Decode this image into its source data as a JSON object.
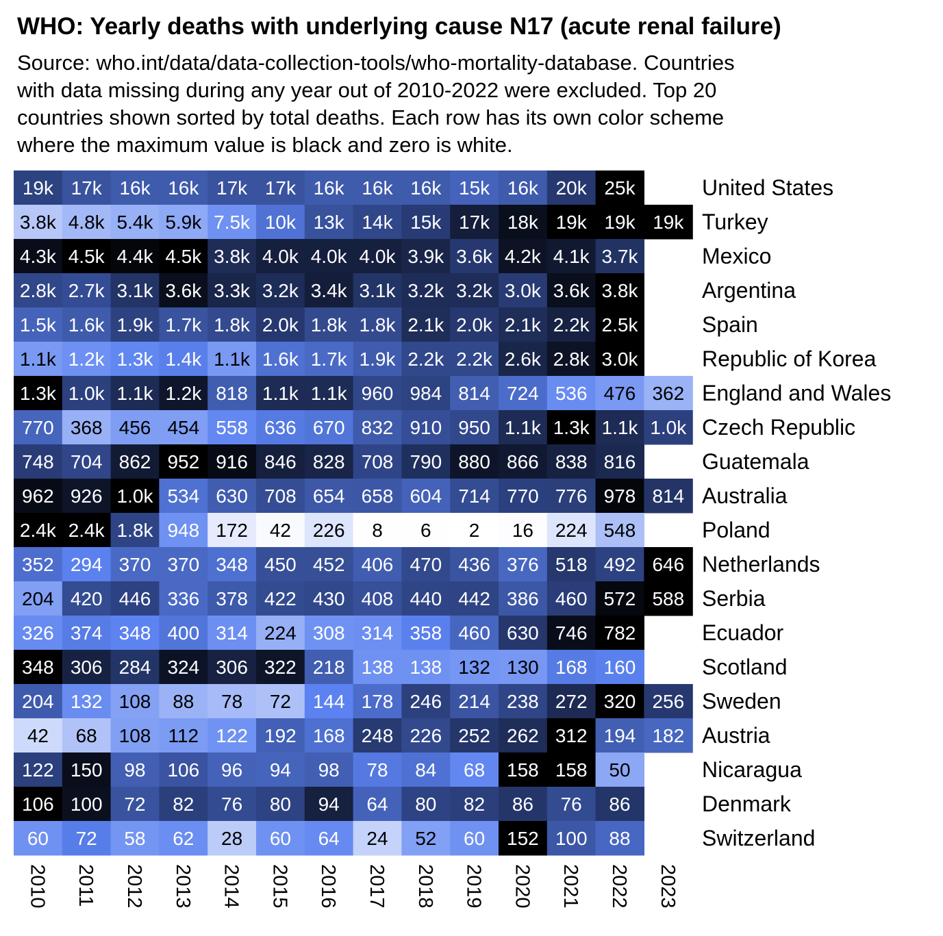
{
  "title": "WHO: Yearly deaths with underlying cause N17 (acute renal failure)",
  "subtitle": "Source: who.int/data/data-collection-tools/who-mortality-database. Countries\nwith data missing during any year out of 2010-2022 were excluded. Top 20\ncountries shown sorted by total deaths. Each row has its own color scheme\nwhere the maximum value is black and zero is white.",
  "chart_data": {
    "type": "heatmap",
    "color_scale": {
      "zero": "#ffffff",
      "mid": "#5b82f0",
      "high": "#2a3e7a",
      "max": "#000000"
    },
    "years": [
      "2010",
      "2011",
      "2012",
      "2013",
      "2014",
      "2015",
      "2016",
      "2017",
      "2018",
      "2019",
      "2020",
      "2021",
      "2022",
      "2023"
    ],
    "rows": [
      {
        "country": "United States",
        "values": [
          19000,
          17000,
          16000,
          16000,
          17000,
          17000,
          16000,
          16000,
          16000,
          15000,
          16000,
          20000,
          25000,
          null
        ],
        "labels": [
          "19k",
          "17k",
          "16k",
          "16k",
          "17k",
          "17k",
          "16k",
          "16k",
          "16k",
          "15k",
          "16k",
          "20k",
          "25k",
          ""
        ]
      },
      {
        "country": "Turkey",
        "values": [
          3800,
          4800,
          5400,
          5900,
          7500,
          10000,
          13000,
          14000,
          15000,
          17000,
          18000,
          19000,
          19000,
          19000
        ],
        "labels": [
          "3.8k",
          "4.8k",
          "5.4k",
          "5.9k",
          "7.5k",
          "10k",
          "13k",
          "14k",
          "15k",
          "17k",
          "18k",
          "19k",
          "19k",
          "19k"
        ]
      },
      {
        "country": "Mexico",
        "values": [
          4300,
          4500,
          4400,
          4500,
          3800,
          4000,
          4000,
          4000,
          3900,
          3600,
          4200,
          4100,
          3700,
          null
        ],
        "labels": [
          "4.3k",
          "4.5k",
          "4.4k",
          "4.5k",
          "3.8k",
          "4.0k",
          "4.0k",
          "4.0k",
          "3.9k",
          "3.6k",
          "4.2k",
          "4.1k",
          "3.7k",
          ""
        ]
      },
      {
        "country": "Argentina",
        "values": [
          2800,
          2700,
          3100,
          3600,
          3300,
          3200,
          3400,
          3100,
          3200,
          3200,
          3000,
          3600,
          3800,
          null
        ],
        "labels": [
          "2.8k",
          "2.7k",
          "3.1k",
          "3.6k",
          "3.3k",
          "3.2k",
          "3.4k",
          "3.1k",
          "3.2k",
          "3.2k",
          "3.0k",
          "3.6k",
          "3.8k",
          ""
        ]
      },
      {
        "country": "Spain",
        "values": [
          1500,
          1600,
          1900,
          1700,
          1800,
          2000,
          1800,
          1800,
          2100,
          2000,
          2100,
          2200,
          2500,
          null
        ],
        "labels": [
          "1.5k",
          "1.6k",
          "1.9k",
          "1.7k",
          "1.8k",
          "2.0k",
          "1.8k",
          "1.8k",
          "2.1k",
          "2.0k",
          "2.1k",
          "2.2k",
          "2.5k",
          ""
        ]
      },
      {
        "country": "Republic of Korea",
        "values": [
          1100,
          1200,
          1300,
          1400,
          1100,
          1600,
          1700,
          1900,
          2200,
          2200,
          2600,
          2800,
          3000,
          null
        ],
        "labels": [
          "1.1k",
          "1.2k",
          "1.3k",
          "1.4k",
          "1.1k",
          "1.6k",
          "1.7k",
          "1.9k",
          "2.2k",
          "2.2k",
          "2.6k",
          "2.8k",
          "3.0k",
          ""
        ]
      },
      {
        "country": "England and Wales",
        "values": [
          1300,
          1000,
          1100,
          1200,
          818,
          1100,
          1100,
          960,
          984,
          814,
          724,
          536,
          476,
          362
        ],
        "labels": [
          "1.3k",
          "1.0k",
          "1.1k",
          "1.2k",
          "818",
          "1.1k",
          "1.1k",
          "960",
          "984",
          "814",
          "724",
          "536",
          "476",
          "362"
        ]
      },
      {
        "country": "Czech Republic",
        "values": [
          770,
          368,
          456,
          454,
          558,
          636,
          670,
          832,
          910,
          950,
          1100,
          1300,
          1100,
          1000
        ],
        "labels": [
          "770",
          "368",
          "456",
          "454",
          "558",
          "636",
          "670",
          "832",
          "910",
          "950",
          "1.1k",
          "1.3k",
          "1.1k",
          "1.0k"
        ]
      },
      {
        "country": "Guatemala",
        "values": [
          748,
          704,
          862,
          952,
          916,
          846,
          828,
          708,
          790,
          880,
          866,
          838,
          816,
          null
        ],
        "labels": [
          "748",
          "704",
          "862",
          "952",
          "916",
          "846",
          "828",
          "708",
          "790",
          "880",
          "866",
          "838",
          "816",
          ""
        ]
      },
      {
        "country": "Australia",
        "values": [
          962,
          926,
          1000,
          534,
          630,
          708,
          654,
          658,
          604,
          714,
          770,
          776,
          978,
          814
        ],
        "labels": [
          "962",
          "926",
          "1.0k",
          "534",
          "630",
          "708",
          "654",
          "658",
          "604",
          "714",
          "770",
          "776",
          "978",
          "814"
        ]
      },
      {
        "country": "Poland",
        "values": [
          2400,
          2400,
          1800,
          948,
          172,
          42,
          226,
          8,
          6,
          2,
          16,
          224,
          548,
          null
        ],
        "labels": [
          "2.4k",
          "2.4k",
          "1.8k",
          "948",
          "172",
          "42",
          "226",
          "8",
          "6",
          "2",
          "16",
          "224",
          "548",
          ""
        ]
      },
      {
        "country": "Netherlands",
        "values": [
          352,
          294,
          370,
          370,
          348,
          450,
          452,
          406,
          470,
          436,
          376,
          518,
          492,
          646
        ],
        "labels": [
          "352",
          "294",
          "370",
          "370",
          "348",
          "450",
          "452",
          "406",
          "470",
          "436",
          "376",
          "518",
          "492",
          "646"
        ]
      },
      {
        "country": "Serbia",
        "values": [
          204,
          420,
          446,
          336,
          378,
          422,
          430,
          408,
          440,
          442,
          386,
          460,
          572,
          588
        ],
        "labels": [
          "204",
          "420",
          "446",
          "336",
          "378",
          "422",
          "430",
          "408",
          "440",
          "442",
          "386",
          "460",
          "572",
          "588"
        ]
      },
      {
        "country": "Ecuador",
        "values": [
          326,
          374,
          348,
          400,
          314,
          224,
          308,
          314,
          358,
          460,
          630,
          746,
          782,
          null
        ],
        "labels": [
          "326",
          "374",
          "348",
          "400",
          "314",
          "224",
          "308",
          "314",
          "358",
          "460",
          "630",
          "746",
          "782",
          ""
        ]
      },
      {
        "country": "Scotland",
        "values": [
          348,
          306,
          284,
          324,
          306,
          322,
          218,
          138,
          138,
          132,
          130,
          168,
          160,
          null
        ],
        "labels": [
          "348",
          "306",
          "284",
          "324",
          "306",
          "322",
          "218",
          "138",
          "138",
          "132",
          "130",
          "168",
          "160",
          ""
        ]
      },
      {
        "country": "Sweden",
        "values": [
          204,
          132,
          108,
          88,
          78,
          72,
          144,
          178,
          246,
          214,
          238,
          272,
          320,
          256
        ],
        "labels": [
          "204",
          "132",
          "108",
          "88",
          "78",
          "72",
          "144",
          "178",
          "246",
          "214",
          "238",
          "272",
          "320",
          "256"
        ]
      },
      {
        "country": "Austria",
        "values": [
          42,
          68,
          108,
          112,
          122,
          192,
          168,
          248,
          226,
          252,
          262,
          312,
          194,
          182
        ],
        "labels": [
          "42",
          "68",
          "108",
          "112",
          "122",
          "192",
          "168",
          "248",
          "226",
          "252",
          "262",
          "312",
          "194",
          "182"
        ]
      },
      {
        "country": "Nicaragua",
        "values": [
          122,
          150,
          98,
          106,
          96,
          94,
          98,
          78,
          84,
          68,
          158,
          158,
          50,
          null
        ],
        "labels": [
          "122",
          "150",
          "98",
          "106",
          "96",
          "94",
          "98",
          "78",
          "84",
          "68",
          "158",
          "158",
          "50",
          ""
        ]
      },
      {
        "country": "Denmark",
        "values": [
          106,
          100,
          72,
          82,
          76,
          80,
          94,
          64,
          80,
          82,
          86,
          76,
          86,
          null
        ],
        "labels": [
          "106",
          "100",
          "72",
          "82",
          "76",
          "80",
          "94",
          "64",
          "80",
          "82",
          "86",
          "76",
          "86",
          ""
        ]
      },
      {
        "country": "Switzerland",
        "values": [
          60,
          72,
          58,
          62,
          28,
          60,
          64,
          24,
          52,
          60,
          152,
          100,
          88,
          null
        ],
        "labels": [
          "60",
          "72",
          "58",
          "62",
          "28",
          "60",
          "64",
          "24",
          "52",
          "60",
          "152",
          "100",
          "88",
          ""
        ]
      }
    ]
  }
}
